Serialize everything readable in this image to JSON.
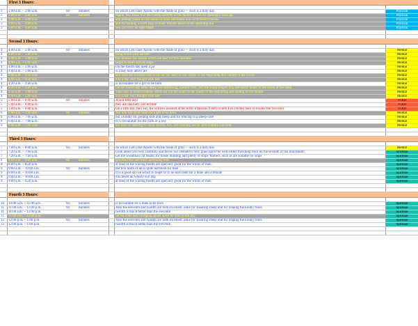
{
  "colors": {
    "header_fill": "#fac090",
    "physical": "#00b0f0",
    "mental": "#ffff00",
    "void": "#ff5b3a",
    "spiritual": "#1fbfb0",
    "row_white": "#ffffff",
    "row_gray": "#a6a6a6",
    "text_blue": "#1f3ee0",
    "text_yellow": "#ffff66",
    "text_red": "#e00000",
    "text_black": "#000000"
  },
  "sections": [
    {
      "title": "First 3 Hours:",
      "rows": [
        {
          "num": "1",
          "time": "1:00 a.m. – 2:00 a.m.",
          "dur": "60",
          "unit": "minutes",
          "text": "on which Leto bare Apollo with the blade of gold — such is a holy day.",
          "type": "Physical",
          "shade": "white",
          "tcolor": "blue"
        },
        {
          "num": "2",
          "time": "2:00 a.m. – 3:00 a.m.",
          "dur": "60",
          "unit": "minutes",
          "text": "Again, few know that the twenty-seventh of the month is best for opening a wine-jar",
          "type": "Physical",
          "shade": "gray",
          "tcolor": "yellow"
        },
        {
          "num": "3",
          "time": "3:00 a.m. – 4:00 a.m.",
          "dur": "",
          "unit": "",
          "text": "and putting yokes on the necks of oxen and mules and swift-footed horses",
          "type": "Physical",
          "shade": "gray",
          "tcolor": "yellow"
        },
        {
          "num": "3",
          "time": "3:00 a.m. – 4:00 a.m.",
          "dur": "",
          "unit": "",
          "text": "and for hauling a swift ship of many thwarts down to the sparkling sea",
          "type": "Physical",
          "shade": "gray",
          "tcolor": "yellow"
        },
        {
          "num": "3",
          "time": "3:00 a.m. – 4:00 a.m.",
          "dur": "",
          "unit": "",
          "text": "few call it by its right name",
          "type": "Physical",
          "shade": "gray",
          "tcolor": "yellow"
        }
      ]
    },
    {
      "title": "Second 3 Hours:",
      "rows": [
        {
          "num": "4",
          "time": "4:00 a.m. – 5:00 a.m.",
          "dur": "60",
          "unit": "minutes",
          "text": "on which Leto bare Apollo with the blade of gold — such is a holy day.",
          "type": "Mental",
          "shade": "white",
          "tcolor": "blue"
        },
        {
          "num": "4",
          "time": "4:00 a.m. – 5:00 a.m.",
          "dur": "",
          "unit": "",
          "text": "bring home your harvest",
          "type": "Mental",
          "shade": "gray",
          "tcolor": "yellow"
        },
        {
          "num": "4",
          "time": "4:00 a.m. – 5:00 a.m.",
          "dur": "",
          "unit": "",
          "text": "but chooses the season which are best for this business",
          "type": "Mental",
          "shade": "gray",
          "tcolor": "yellow"
        },
        {
          "num": "4",
          "time": "4:00 a.m. – 5:00 a.m.",
          "dur": "",
          "unit": "",
          "text": "begin to build narrow ships",
          "type": "Mental",
          "shade": "gray",
          "tcolor": "yellow"
        },
        {
          "num": "4",
          "time": "4:00 a.m. – 5:00 a.m.",
          "dur": "",
          "unit": "",
          "text": "On the fourth day open a jar",
          "type": "Mental",
          "shade": "white",
          "tcolor": "blue"
        },
        {
          "num": "4",
          "time": "4:00 a.m. – 5:00 a.m.",
          "dur": "",
          "unit": "",
          "text": "is a day holy above all",
          "type": "Mental",
          "shade": "white",
          "tcolor": "blue"
        },
        {
          "num": "4",
          "time": "4:00 a.m. – 4:20 a.m.",
          "dur": "",
          "unit": "",
          "text": "But shun the troubles which eat out the heart on the fourth of the beginning and ending of the month",
          "type": "Mental",
          "shade": "gray",
          "tcolor": "yellow"
        },
        {
          "num": "4",
          "time": "4:00 a.m. – 4:20 a.m.",
          "dur": "",
          "unit": "",
          "text": "it is a day very fraught with fate",
          "type": "Mental",
          "shade": "gray",
          "tcolor": "yellow"
        },
        {
          "num": "4",
          "time": "4:20 a.m. – 4:40 a.m.",
          "dur": "",
          "unit": "",
          "text": "is favourable for a girl to be born",
          "type": "Mental",
          "shade": "white",
          "tcolor": "blue"
        },
        {
          "num": "4",
          "time": "4:40 a.m. – 5:00 a.m.",
          "dur": "",
          "unit": "",
          "text": "On the fourth day tame sheep and shambling, horned oxen, and the sharp-fanged dog and hardy mules to the touch of the hand",
          "type": "Mental",
          "shade": "gray",
          "tcolor": "yellow"
        },
        {
          "num": "4",
          "time": "4:40 a.m. – 5:00 a.m.",
          "dur": "",
          "unit": "",
          "text": "Take care to avoid troubles which eat out the heart on the fourth of the beginning and ending of the month",
          "type": "Mental",
          "shade": "gray",
          "tcolor": "yellow"
        },
        {
          "num": "4",
          "time": "4:40 a.m. – 5:00 a.m.",
          "dur": "",
          "unit": "",
          "text": "it is a day very fraught with fate",
          "type": "Mental",
          "shade": "gray",
          "tcolor": "yellow"
        },
        {
          "num": "5",
          "time": "5:00 a.m. – 6:00 a.m.",
          "dur": "60",
          "unit": "minutes",
          "text": "Avoid fifth days",
          "type": "VOID",
          "shade": "white",
          "tcolor": "red"
        },
        {
          "num": "5",
          "time": "5:00 a.m. – 6:00 a.m.",
          "dur": "",
          "unit": "",
          "text": "they are unkindly and terrible",
          "type": "VOID",
          "shade": "white",
          "tcolor": "red"
        },
        {
          "num": "5",
          "time": "5:00 a.m. – 6:00 a.m.",
          "dur": "",
          "unit": "",
          "text": "On a fifth day, they say, the Erinyes assisted at the birth of Horcus (Oath) whom Eris (Strife) bare to trouble the forsworn.",
          "type": "VOID",
          "shade": "white",
          "tcolor": "red"
        },
        {
          "num": "6",
          "time": "6:00 a.m. – 7:00 a.m.",
          "dur": "60",
          "unit": "minutes",
          "text": "Not a fit day to be born for a girl to be born",
          "type": "Mental",
          "shade": "gray",
          "tcolor": "yellow"
        },
        {
          "num": "6",
          "time": "6:00 a.m. – 7:00 a.m.",
          "dur": "",
          "unit": "",
          "text": "but a kindly for gelding kids and sheep and for fencing in a sheep-cote",
          "type": "Mental",
          "shade": "white",
          "tcolor": "blue"
        },
        {
          "num": "6",
          "time": "6:00 a.m. – 7:00 a.m.",
          "dur": "",
          "unit": "",
          "text": "It is favourable for the birth of a boy",
          "type": "Mental",
          "shade": "white",
          "tcolor": "blue"
        },
        {
          "num": "6",
          "time": "6:00 a.m. – 7:00 a.m.",
          "dur": "",
          "unit": "",
          "text": "but fond of uttering of sharp speech, lies, and cunning words, and stealthy converse",
          "type": "Mental",
          "shade": "gray",
          "tcolor": "yellow"
        }
      ]
    },
    {
      "title": "Third 3 Hours:",
      "rows": [
        {
          "num": "7",
          "time": "7:00 a.m. – 8:00 a.m.",
          "dur": "60",
          "unit": "minutes",
          "text": "on which Leto bare Apollo with the blade of gold — such is a holy day.",
          "type": "Mental",
          "shade": "white",
          "tcolor": "blue"
        },
        {
          "num": "7",
          "time": "7:20 a.m. – 7:40 a.m.",
          "dur": "",
          "unit": "",
          "text": "Look about you very carefully and throw out Demeter's holy grain upon the well-rolled threshing floor on the seventh of the mid-month",
          "type": "Spiritual",
          "shade": "white",
          "tcolor": "blue"
        },
        {
          "num": "7",
          "time": "7:20 a.m. – 7:40 a.m.",
          "dur": "",
          "unit": "",
          "text": "Let the woodman cut beams for house building and plenty of ships' timbers, such as are suitable for ships",
          "type": "Spiritual",
          "shade": "white",
          "tcolor": "blue"
        },
        {
          "num": "8",
          "time": "8:00 a.m. – 9:00 a.m.",
          "dur": "60",
          "unit": "minutes",
          "text": "geld the boar and loud- bellowing bull",
          "type": "Spiritual",
          "shade": "gray",
          "tcolor": "yellow"
        },
        {
          "num": "8",
          "time": "8:00 a.m. – 8:20 a.m.",
          "dur": "",
          "unit": "",
          "text": "at least of the waxing month are specially good for the works of man.",
          "type": "Spiritual",
          "shade": "white",
          "tcolor": "blue"
        },
        {
          "num": "9",
          "time": "9:00 a.m. – 10:00 a.m.",
          "dur": "60",
          "unit": "minutes",
          "text": "the first ninth of all is quite harmless for men",
          "type": "Spiritual",
          "shade": "white",
          "tcolor": "blue"
        },
        {
          "num": "9",
          "time": "9:00 a.m. – 10:00 a.m.",
          "dur": "",
          "unit": "",
          "text": "It is a good day on which to beget or to be born both for a male and a female",
          "type": "Spiritual",
          "shade": "white",
          "tcolor": "blue"
        },
        {
          "num": "9",
          "time": "9:00 a.m. – 10:00 a.m.",
          "dur": "",
          "unit": "",
          "text": "it is never an wholly evil day",
          "type": "Spiritual",
          "shade": "white",
          "tcolor": "blue"
        },
        {
          "num": "9",
          "time": "9:00 a.m. – 9:20 a.m.",
          "dur": "",
          "unit": "",
          "text": "at least of the waxing month are specially good for the works of man.",
          "type": "Spiritual",
          "shade": "white",
          "tcolor": "blue"
        }
      ]
    },
    {
      "title": "Fourth 3 Hours:",
      "rows": [
        {
          "num": "10",
          "time": "10:00 a.m. – 11:00 a.m.",
          "dur": "60",
          "unit": "minutes",
          "text": "is favourable for a male to be born",
          "type": "Spiritual",
          "shade": "white",
          "tcolor": "blue"
        },
        {
          "num": "11",
          "time": "11:00 a.m. – 12:00 p.m.",
          "dur": "60",
          "unit": "minutes",
          "text": "Also the eleventh and twelfth are both excellent, alike for shearing sheep and for reaping the kindly fruits",
          "type": "Spiritual",
          "shade": "white",
          "tcolor": "blue"
        },
        {
          "num": "11",
          "time": "11:00 a.m. – 12:00 p.m.",
          "dur": "",
          "unit": "",
          "text": "twelfth is much better than the eleventh",
          "type": "Spiritual",
          "shade": "white",
          "tcolor": "blue"
        },
        {
          "num": "11",
          "time": "11:00 a.m. – 12:00 p.m.",
          "dur": "",
          "unit": "",
          "text": "for on it the airy-swinging spider spins its web in full day",
          "type": "Spiritual",
          "shade": "gray",
          "tcolor": "yellow"
        },
        {
          "num": "12",
          "time": "12:00 p.m. – 1:00 p.m.",
          "dur": "60",
          "unit": "minutes",
          "text": "Also the eleventh and twelfth are both excellent, alike for shearing sheep and for reaping the kindly fruits",
          "type": "Spiritual",
          "shade": "white",
          "tcolor": "blue"
        },
        {
          "num": "12",
          "time": "12:00 p.m. – 1:00 p.m.",
          "dur": "",
          "unit": "",
          "text": "twelfth is much better than the eleventh",
          "type": "Spiritual",
          "shade": "white",
          "tcolor": "blue"
        }
      ]
    }
  ]
}
